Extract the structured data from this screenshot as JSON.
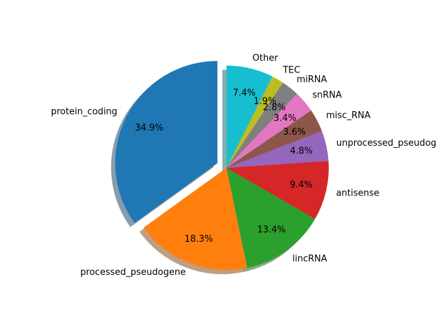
{
  "chart_data": {
    "type": "pie",
    "title": "",
    "start_angle_deg": 90,
    "direction": "counterclockwise",
    "shadow": true,
    "slices": [
      {
        "label": "protein_coding",
        "value": 34.9,
        "pct_label": "34.9%",
        "color": "#1f77b4",
        "explode": 0.1
      },
      {
        "label": "processed_pseudogene",
        "value": 18.3,
        "pct_label": "18.3%",
        "color": "#ff7f0e",
        "explode": 0
      },
      {
        "label": "lincRNA",
        "value": 13.4,
        "pct_label": "13.4%",
        "color": "#2ca02c",
        "explode": 0
      },
      {
        "label": "antisense",
        "value": 9.4,
        "pct_label": "9.4%",
        "color": "#d62728",
        "explode": 0
      },
      {
        "label": "unprocessed_pseudog",
        "value": 4.8,
        "pct_label": "4.8%",
        "color": "#9467bd",
        "explode": 0
      },
      {
        "label": "misc_RNA",
        "value": 3.6,
        "pct_label": "3.6%",
        "color": "#8c564b",
        "explode": 0
      },
      {
        "label": "snRNA",
        "value": 3.4,
        "pct_label": "3.4%",
        "color": "#e377c2",
        "explode": 0
      },
      {
        "label": "miRNA",
        "value": 2.8,
        "pct_label": "2.8%",
        "color": "#7f7f7f",
        "explode": 0
      },
      {
        "label": "TEC",
        "value": 1.9,
        "pct_label": "1.9%",
        "color": "#bcbd22",
        "explode": 0
      },
      {
        "label": "Other",
        "value": 7.4,
        "pct_label": "7.4%",
        "color": "#17becf",
        "explode": 0
      }
    ]
  }
}
